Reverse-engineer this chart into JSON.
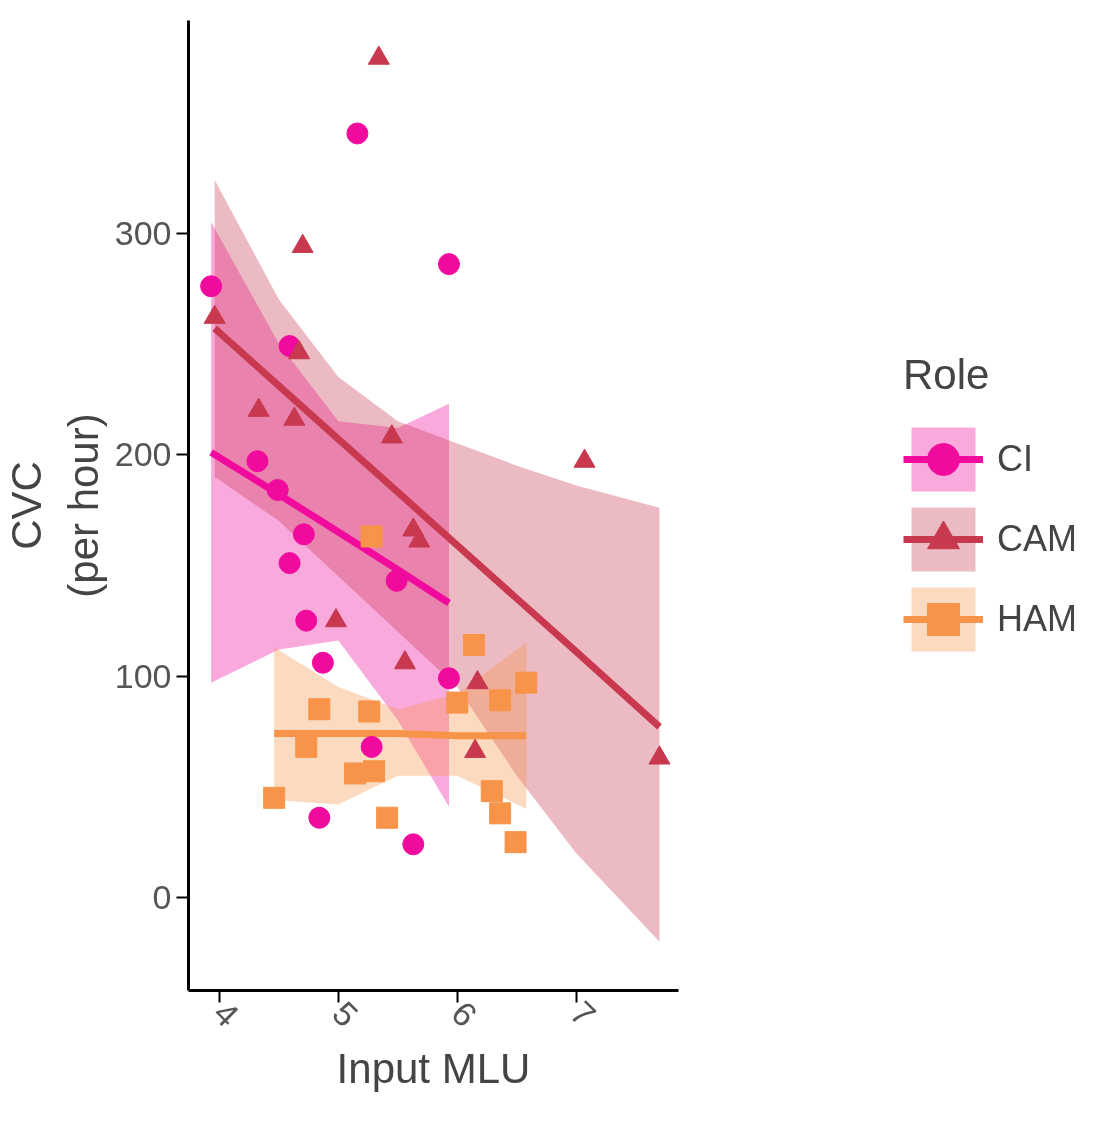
{
  "chart_data": {
    "type": "scatter",
    "xlabel": "Input MLU",
    "ylabel": "CVC\n(per hour)",
    "legend_title": "Role",
    "legend": "right",
    "grid": false,
    "xlim": [
      3.74,
      7.86
    ],
    "xticks": [
      4,
      5,
      6,
      7
    ],
    "ylim": [
      -42,
      396
    ],
    "yticks": [
      0,
      100,
      200,
      300
    ],
    "series": [
      {
        "name": "CI",
        "color": "#f00a9e",
        "marker": "circle",
        "x": [
          3.93,
          5.16,
          5.93,
          4.59,
          4.32,
          4.49,
          4.71,
          4.59,
          5.49,
          4.73,
          4.87,
          5.93,
          5.28,
          4.84,
          5.63
        ],
        "values": [
          276,
          345,
          286,
          249,
          197,
          184,
          164,
          151,
          143,
          125,
          106,
          99,
          68,
          36,
          24
        ]
      },
      {
        "name": "CAM",
        "color": "#c8384f",
        "marker": "triangle",
        "x": [
          5.34,
          4.7,
          3.96,
          4.67,
          4.33,
          4.63,
          5.45,
          5.68,
          5.63,
          4.98,
          5.56,
          7.07,
          6.17,
          6.15,
          7.7
        ],
        "values": [
          379,
          294,
          262,
          246,
          220,
          216,
          208,
          161,
          166,
          125,
          106,
          197,
          97,
          66,
          63
        ]
      },
      {
        "name": "HAM",
        "color": "#f7944a",
        "marker": "square",
        "x": [
          5.28,
          6.14,
          6.58,
          6.36,
          6.0,
          4.84,
          5.26,
          4.73,
          5.14,
          5.3,
          4.46,
          5.41,
          6.29,
          6.36,
          6.49
        ],
        "values": [
          163,
          114,
          97,
          89,
          88,
          85,
          84,
          68,
          56,
          57,
          45,
          36,
          48,
          38,
          25
        ]
      },
      {
        "type": "line",
        "color": "#f00a9e",
        "marker": "none",
        "x": [
          3.93,
          4.5,
          5.0,
          5.5,
          5.93
        ],
        "values": [
          201,
          182,
          165,
          148,
          133
        ],
        "lower": [
          97,
          112,
          116,
          80,
          41
        ],
        "upper": [
          305,
          250,
          215,
          212,
          223
        ]
      },
      {
        "type": "line",
        "color": "#c8384f",
        "marker": "none",
        "x": [
          3.96,
          4.5,
          5.0,
          5.5,
          6.0,
          6.5,
          7.0,
          7.7
        ],
        "values": [
          257,
          231,
          207,
          183,
          159,
          135,
          111,
          77
        ],
        "lower": [
          190,
          170,
          145,
          120,
          95,
          55,
          20,
          -20
        ],
        "upper": [
          324,
          270,
          235,
          215,
          205,
          195,
          186,
          176
        ]
      },
      {
        "type": "line",
        "color": "#f7944a",
        "marker": "none",
        "x": [
          4.46,
          5.0,
          5.5,
          6.0,
          6.58
        ],
        "values": [
          74,
          74,
          74,
          73,
          73
        ],
        "lower": [
          44,
          42,
          55,
          55,
          40
        ],
        "upper": [
          113,
          95,
          85,
          92,
          115
        ]
      }
    ]
  }
}
